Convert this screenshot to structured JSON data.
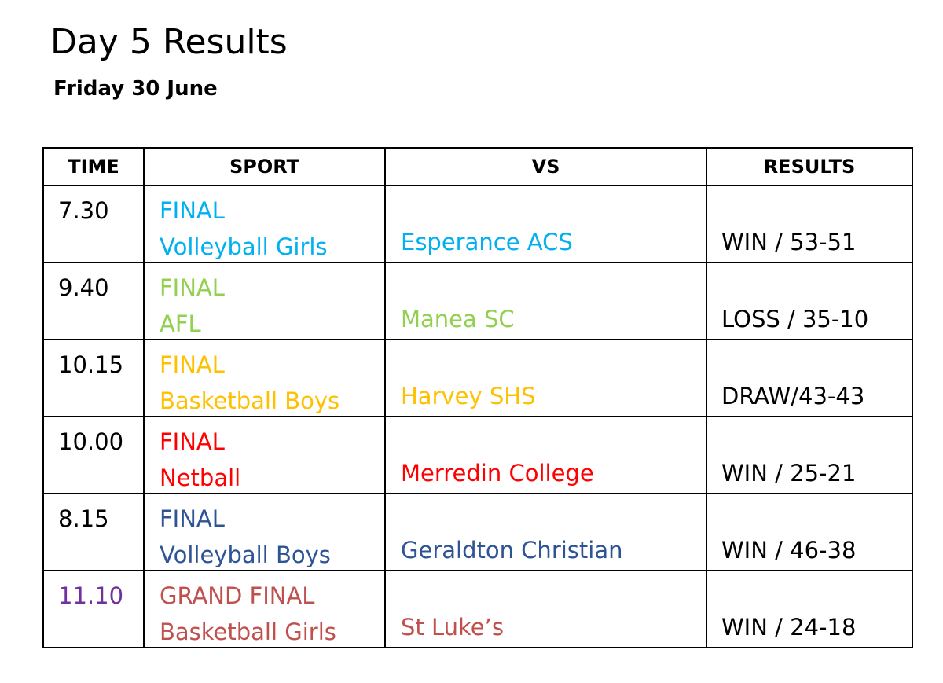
{
  "header": {
    "title": "Day 5 Results",
    "date": "Friday 30 June"
  },
  "table": {
    "columns": [
      "TIME",
      "SPORT",
      "VS",
      "RESULTS"
    ],
    "rows": [
      {
        "time": "7.30",
        "time_color": "#000000",
        "stage": "FINAL",
        "sport": "Volleyball Girls",
        "opponent": "Esperance ACS",
        "result": "WIN / 53-51",
        "color": "#00B0F0"
      },
      {
        "time": "9.40",
        "time_color": "#000000",
        "stage": "FINAL",
        "sport": "AFL",
        "opponent": "Manea SC",
        "result": "LOSS / 35-10",
        "color": "#92D050"
      },
      {
        "time": "10.15",
        "time_color": "#000000",
        "stage": "FINAL",
        "sport": "Basketball Boys",
        "opponent": "Harvey SHS",
        "result": "DRAW/43-43",
        "color": "#FFC000"
      },
      {
        "time": "10.00",
        "time_color": "#000000",
        "stage": "FINAL",
        "sport": "Netball",
        "opponent": "Merredin College",
        "result": "WIN / 25-21",
        "color": "#FF0000"
      },
      {
        "time": "8.15",
        "time_color": "#000000",
        "stage": "FINAL",
        "sport": "Volleyball Boys",
        "opponent": "Geraldton Christian",
        "result": "WIN / 46-38",
        "color": "#2F5496"
      },
      {
        "time": "11.10",
        "time_color": "#7030A0",
        "stage": "GRAND FINAL",
        "sport": "Basketball Girls",
        "opponent": "St Luke’s",
        "result": "WIN / 24-18",
        "color": "#C0504D"
      }
    ]
  }
}
